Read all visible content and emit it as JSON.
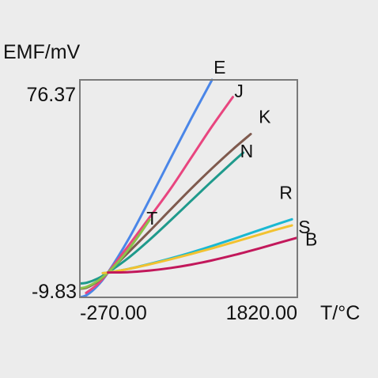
{
  "chart_data": {
    "type": "line",
    "xlabel": "T/°C",
    "ylabel": "EMF/mV",
    "xlim": [
      -270.0,
      1820.0
    ],
    "ylim": [
      -9.83,
      76.37
    ],
    "x_tick_labels": [
      "-270.00",
      "1820.00"
    ],
    "y_tick_labels": [
      "76.37",
      "-9.83"
    ],
    "grid": false,
    "series": [
      {
        "name": "E",
        "color": "#4a86e8",
        "x": [
          -270,
          -200,
          -100,
          0,
          200,
          400,
          600,
          800,
          1000
        ],
        "y": [
          -9.83,
          -8.83,
          -5.24,
          0,
          13.42,
          28.94,
          45.09,
          61.02,
          76.37
        ]
      },
      {
        "name": "J",
        "color": "#e8457f",
        "x": [
          -210,
          -100,
          0,
          200,
          400,
          600,
          800,
          1000,
          1200
        ],
        "y": [
          -8.1,
          -4.63,
          0,
          10.78,
          21.85,
          33.1,
          45.5,
          57.95,
          69.55
        ]
      },
      {
        "name": "K",
        "color": "#7f5a4e",
        "x": [
          -270,
          -200,
          -100,
          0,
          200,
          400,
          600,
          800,
          1000,
          1200,
          1372
        ],
        "y": [
          -6.46,
          -5.89,
          -3.55,
          0,
          8.14,
          16.4,
          24.9,
          33.28,
          41.28,
          48.84,
          54.89
        ]
      },
      {
        "name": "N",
        "color": "#1f9a8c",
        "x": [
          -270,
          -200,
          -100,
          0,
          200,
          400,
          600,
          800,
          1000,
          1200,
          1300
        ],
        "y": [
          -4.35,
          -3.99,
          -2.41,
          0,
          5.91,
          12.97,
          20.61,
          28.46,
          36.26,
          43.85,
          47.51
        ]
      },
      {
        "name": "T",
        "color": "#8bc34a",
        "x": [
          -270,
          -200,
          -100,
          0,
          100,
          200,
          300,
          400
        ],
        "y": [
          -6.26,
          -5.6,
          -3.38,
          0,
          4.28,
          9.29,
          14.86,
          20.87
        ]
      },
      {
        "name": "R",
        "color": "#1ab8d2",
        "x": [
          -50,
          0,
          200,
          400,
          600,
          800,
          1000,
          1200,
          1400,
          1600,
          1768
        ],
        "y": [
          -0.23,
          0,
          1.47,
          3.41,
          5.58,
          7.95,
          10.51,
          13.23,
          16.04,
          18.84,
          21.1
        ]
      },
      {
        "name": "S",
        "color": "#f2c230",
        "x": [
          -50,
          0,
          200,
          400,
          600,
          800,
          1000,
          1200,
          1400,
          1600,
          1768
        ],
        "y": [
          -0.24,
          0,
          1.44,
          3.26,
          5.24,
          7.35,
          9.59,
          11.95,
          14.37,
          16.78,
          18.69
        ]
      },
      {
        "name": "B",
        "color": "#c2185b",
        "x": [
          0,
          200,
          400,
          600,
          800,
          1000,
          1200,
          1400,
          1600,
          1820
        ],
        "y": [
          0,
          0.18,
          0.79,
          1.79,
          3.15,
          4.83,
          6.79,
          8.96,
          11.26,
          13.82
        ]
      }
    ]
  },
  "colors": {
    "background": "#ececec",
    "frame": "#7a7a7a"
  }
}
